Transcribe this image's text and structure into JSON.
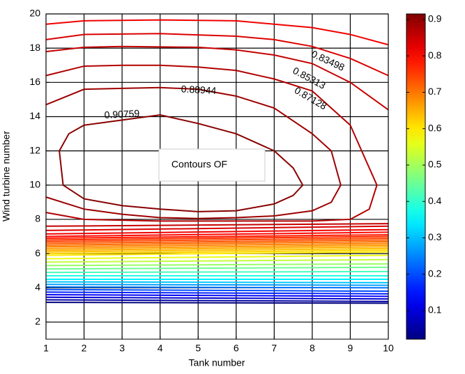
{
  "chart_data": {
    "type": "contour",
    "x_label": "Tank number",
    "y_label": "Wind turbine number",
    "annotation": "Contours OF",
    "xlim": [
      1,
      10
    ],
    "ylim": [
      1,
      20
    ],
    "xticks": [
      1,
      2,
      3,
      4,
      5,
      6,
      7,
      8,
      9,
      10
    ],
    "yticks": [
      2,
      4,
      6,
      8,
      10,
      12,
      14,
      16,
      18,
      20
    ],
    "grid": true,
    "grid_color": "#000000",
    "colormap": "jet",
    "clim": [
      0.0215,
      0.9153
    ],
    "cticks": [
      0.1,
      0.2,
      0.3,
      0.4,
      0.5,
      0.6,
      0.7,
      0.8,
      0.9
    ],
    "contours": [
      {
        "level": 0.90759,
        "labeled": true,
        "x": [
          1.35,
          1.45,
          2,
          3,
          4,
          5,
          6,
          7,
          7.5,
          7.75,
          7.5,
          7,
          6,
          5,
          4,
          3,
          2,
          1.6,
          1.35
        ],
        "y": [
          12,
          10,
          9.2,
          8.8,
          8.6,
          8.45,
          8.5,
          8.9,
          9.4,
          10,
          11,
          12,
          13,
          13.6,
          14.1,
          13.8,
          13.5,
          13,
          12
        ]
      },
      {
        "level": 0.88944,
        "labeled": true,
        "x": [
          1,
          2,
          3,
          4,
          5,
          6,
          7,
          8,
          8.5,
          8.75,
          8.5,
          8,
          7,
          6,
          5,
          4,
          3,
          2,
          1
        ],
        "y": [
          14.7,
          15.6,
          15.65,
          15.7,
          15.6,
          15.2,
          14.5,
          13,
          12,
          10,
          9,
          8.5,
          8.2,
          8.1,
          8.05,
          8.1,
          8.3,
          8.6,
          9.3
        ]
      },
      {
        "level": 0.87128,
        "labeled": true,
        "x": [
          1,
          2,
          3,
          4,
          5,
          6,
          7,
          8,
          9,
          9.7,
          9.5,
          9,
          8,
          6,
          4,
          2,
          1
        ],
        "y": [
          16.4,
          16.95,
          17,
          17,
          16.9,
          16.7,
          16.2,
          15.5,
          13.5,
          10,
          8.6,
          8,
          7.9,
          7.9,
          7.9,
          8,
          8.4
        ]
      },
      {
        "level": 0.85313,
        "labeled": true,
        "x": [
          1,
          2,
          3,
          5,
          6,
          7,
          8,
          9,
          10
        ],
        "y": [
          17.8,
          18.05,
          18.1,
          18.05,
          17.9,
          17.6,
          17.1,
          16,
          14.4
        ]
      },
      {
        "level": 0.83498,
        "labeled": true,
        "x": [
          1,
          2,
          4,
          6,
          7,
          8,
          9,
          10
        ],
        "y": [
          18.5,
          18.8,
          18.85,
          18.7,
          18.5,
          18.1,
          17.4,
          16.4
        ]
      },
      {
        "level": 0.81683,
        "labeled": false,
        "x": [
          1,
          2,
          4,
          6,
          8,
          9,
          10
        ],
        "y": [
          19.4,
          19.6,
          19.65,
          19.6,
          19.2,
          18.8,
          18.2
        ]
      },
      {
        "level": 0.85313,
        "labeled": false,
        "x": [
          1,
          10
        ],
        "y": [
          7.6,
          7.75
        ]
      },
      {
        "level": 0.83498,
        "labeled": false,
        "x": [
          1,
          10
        ],
        "y": [
          7.35,
          7.6
        ]
      },
      {
        "level": 0.81683,
        "labeled": false,
        "x": [
          1,
          10
        ],
        "y": [
          7.15,
          7.4
        ]
      },
      {
        "level": 0.79868,
        "labeled": false,
        "x": [
          1,
          10
        ],
        "y": [
          7.0,
          7.25
        ]
      },
      {
        "level": 0.78053,
        "labeled": false,
        "x": [
          1,
          10
        ],
        "y": [
          6.9,
          7.1
        ]
      },
      {
        "level": 0.76237,
        "labeled": false,
        "x": [
          1,
          10
        ],
        "y": [
          6.8,
          7.0
        ]
      },
      {
        "level": 0.74422,
        "labeled": false,
        "x": [
          1,
          10
        ],
        "y": [
          6.7,
          6.9
        ]
      },
      {
        "level": 0.72607,
        "labeled": false,
        "x": [
          1,
          10
        ],
        "y": [
          6.6,
          6.8
        ]
      },
      {
        "level": 0.70792,
        "labeled": false,
        "x": [
          1,
          10
        ],
        "y": [
          6.5,
          6.7
        ]
      },
      {
        "level": 0.68977,
        "labeled": false,
        "x": [
          1,
          10
        ],
        "y": [
          6.4,
          6.6
        ]
      },
      {
        "level": 0.67161,
        "labeled": false,
        "x": [
          1,
          10
        ],
        "y": [
          6.3,
          6.5
        ]
      },
      {
        "level": 0.65346,
        "labeled": false,
        "x": [
          1,
          10
        ],
        "y": [
          6.2,
          6.4
        ]
      },
      {
        "level": 0.63531,
        "labeled": false,
        "x": [
          1,
          10
        ],
        "y": [
          6.1,
          6.3
        ]
      },
      {
        "level": 0.61716,
        "labeled": false,
        "x": [
          1,
          10
        ],
        "y": [
          6.0,
          6.2
        ]
      },
      {
        "level": 0.59901,
        "labeled": false,
        "x": [
          1,
          10
        ],
        "y": [
          5.9,
          6.1
        ]
      },
      {
        "level": 0.5627,
        "labeled": false,
        "x": [
          1,
          10
        ],
        "y": [
          5.7,
          5.9
        ]
      },
      {
        "level": 0.5264,
        "labeled": false,
        "x": [
          1,
          10
        ],
        "y": [
          5.5,
          5.65
        ]
      },
      {
        "level": 0.4901,
        "labeled": false,
        "x": [
          1,
          10
        ],
        "y": [
          5.3,
          5.4
        ]
      },
      {
        "level": 0.4538,
        "labeled": false,
        "x": [
          1,
          10
        ],
        "y": [
          5.1,
          5.2
        ]
      },
      {
        "level": 0.41749,
        "labeled": false,
        "x": [
          1,
          10
        ],
        "y": [
          4.9,
          4.95
        ]
      },
      {
        "level": 0.38119,
        "labeled": false,
        "x": [
          1,
          10
        ],
        "y": [
          4.7,
          4.7
        ]
      },
      {
        "level": 0.34489,
        "labeled": false,
        "x": [
          1,
          10
        ],
        "y": [
          4.5,
          4.5
        ]
      },
      {
        "level": 0.30859,
        "labeled": false,
        "x": [
          1,
          10
        ],
        "y": [
          4.35,
          4.3
        ]
      },
      {
        "level": 0.27229,
        "labeled": false,
        "x": [
          1,
          10
        ],
        "y": [
          4.2,
          4.15
        ]
      },
      {
        "level": 0.23598,
        "labeled": false,
        "x": [
          1,
          10
        ],
        "y": [
          4.05,
          4.0
        ]
      },
      {
        "level": 0.19968,
        "labeled": false,
        "x": [
          1,
          10
        ],
        "y": [
          3.9,
          3.8
        ]
      },
      {
        "level": 0.16338,
        "labeled": false,
        "x": [
          1,
          10
        ],
        "y": [
          3.75,
          3.65
        ]
      },
      {
        "level": 0.12708,
        "labeled": false,
        "x": [
          1,
          10
        ],
        "y": [
          3.6,
          3.5
        ]
      },
      {
        "level": 0.09078,
        "labeled": false,
        "x": [
          1,
          10
        ],
        "y": [
          3.45,
          3.35
        ]
      },
      {
        "level": 0.05447,
        "labeled": false,
        "x": [
          1,
          10
        ],
        "y": [
          3.3,
          3.2
        ]
      },
      {
        "level": 0.01817,
        "labeled": false,
        "x": [
          1,
          10
        ],
        "y": [
          3.15,
          3.1
        ]
      }
    ]
  }
}
